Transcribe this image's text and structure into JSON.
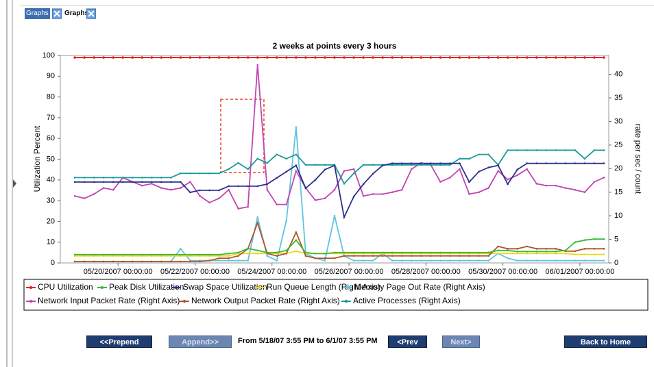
{
  "tabs": [
    "Graphs",
    "Graphs"
  ],
  "chart_data": {
    "type": "line",
    "title": "2 weeks at points every 3 hours",
    "ylabel": "Utilization Percent",
    "y2label": "rate per sec / count",
    "x": [
      "05/18/2007 21:00:00",
      "05/19/2007 03:00:00",
      "05/19/2007 09:00:00",
      "05/19/2007 15:00:00",
      "05/19/2007 21:00:00",
      "05/20/2007 03:00:00",
      "05/20/2007 09:00:00",
      "05/20/2007 15:00:00",
      "05/20/2007 21:00:00",
      "05/21/2007 03:00:00",
      "05/21/2007 09:00:00",
      "05/21/2007 15:00:00",
      "05/21/2007 21:00:00",
      "05/22/2007 03:00:00",
      "05/22/2007 09:00:00",
      "05/22/2007 15:00:00",
      "05/22/2007 21:00:00",
      "05/23/2007 03:00:00",
      "05/23/2007 09:00:00",
      "05/23/2007 15:00:00",
      "05/23/2007 21:00:00",
      "05/24/2007 03:00:00",
      "05/24/2007 09:00:00",
      "05/24/2007 15:00:00",
      "05/24/2007 21:00:00",
      "05/25/2007 03:00:00",
      "05/25/2007 09:00:00",
      "05/25/2007 15:00:00",
      "05/25/2007 21:00:00",
      "05/26/2007 03:00:00",
      "05/26/2007 09:00:00",
      "05/26/2007 15:00:00",
      "05/26/2007 21:00:00",
      "05/27/2007 03:00:00",
      "05/27/2007 09:00:00",
      "05/27/2007 15:00:00",
      "05/27/2007 21:00:00",
      "05/28/2007 03:00:00",
      "05/28/2007 09:00:00",
      "05/28/2007 15:00:00",
      "05/28/2007 21:00:00",
      "05/29/2007 03:00:00",
      "05/29/2007 09:00:00",
      "05/29/2007 15:00:00",
      "05/29/2007 21:00:00",
      "05/30/2007 03:00:00",
      "05/30/2007 09:00:00",
      "05/30/2007 15:00:00",
      "05/30/2007 21:00:00",
      "05/31/2007 03:00:00",
      "05/31/2007 09:00:00",
      "05/31/2007 15:00:00",
      "05/31/2007 21:00:00",
      "06/01/2007 03:00:00",
      "06/01/2007 09:00:00",
      "06/01/2007 15:00:00"
    ],
    "xlim": [
      "05/18/2007 12:00:00",
      "06/01/2007 18:00:00"
    ],
    "xticks": [
      "05/20/2007 00:00:00",
      "05/22/2007 00:00:00",
      "05/24/2007 00:00:00",
      "05/26/2007 00:00:00",
      "05/28/2007 00:00:00",
      "05/30/2007 00:00:00",
      "06/01/2007 00:00:00"
    ],
    "ylim": [
      0,
      100
    ],
    "yticks": [
      0,
      10,
      20,
      30,
      40,
      50,
      60,
      70,
      80,
      90,
      100
    ],
    "y2lim": [
      0,
      44
    ],
    "y2ticks": [
      0,
      5,
      10,
      15,
      20,
      25,
      30,
      35,
      40
    ],
    "grid": false,
    "legend": "bottom",
    "series": [
      {
        "name": "CPU Utilization",
        "color": "#e8202a",
        "values": [
          99,
          99,
          99,
          99,
          99,
          99,
          99,
          99,
          99,
          99,
          99,
          99,
          99,
          99,
          99,
          99,
          99,
          99,
          99,
          99,
          99,
          99,
          99,
          99,
          99,
          99,
          99,
          99,
          99,
          99,
          99,
          99,
          99,
          99,
          99,
          99,
          99,
          99,
          99,
          99,
          99,
          99,
          99,
          99,
          99,
          99,
          99,
          99,
          99,
          99,
          99,
          99,
          99,
          99,
          99,
          99
        ]
      },
      {
        "name": "Peak Disk Utilization",
        "color": "#3db83a",
        "values": [
          4,
          4,
          4,
          4,
          4,
          4,
          4,
          4,
          4,
          4,
          4,
          4,
          4,
          4,
          4,
          4,
          4.5,
          5,
          7,
          6,
          5,
          5,
          6,
          11,
          5,
          4.5,
          4.5,
          5,
          5,
          5,
          5,
          5,
          5,
          5,
          5,
          5,
          5,
          5,
          5,
          5,
          5,
          5,
          5,
          5,
          6,
          6,
          5.5,
          5.5,
          5.5,
          5.5,
          5.5,
          6,
          10,
          11,
          11.5,
          11.5
        ]
      },
      {
        "name": "Swap Space Utilization",
        "color": "#2b2f8f",
        "values": [
          39,
          39,
          39,
          39,
          39,
          39,
          39,
          39,
          39,
          39,
          39,
          39,
          34,
          35,
          35,
          35,
          37,
          37,
          37,
          37,
          38,
          41,
          44,
          47,
          36,
          40,
          45,
          47,
          22,
          32,
          38,
          43,
          47,
          48,
          48,
          48,
          48,
          48,
          48,
          48,
          48,
          39,
          44,
          46,
          47,
          38,
          45,
          48,
          48,
          48,
          48,
          48,
          48,
          48,
          48,
          48
        ]
      },
      {
        "name": "Run Queue Length (Right Axis)",
        "color": "#e8d820",
        "axis": "y2",
        "values": [
          1.5,
          1.5,
          1.5,
          1.5,
          1.5,
          1.5,
          1.5,
          1.5,
          1.5,
          1.5,
          1.5,
          1.5,
          1.5,
          1.5,
          1.5,
          1.5,
          1.5,
          2,
          2,
          2,
          2,
          2,
          2,
          2.5,
          2,
          2,
          2,
          2,
          2,
          2,
          2,
          2,
          2,
          2,
          2,
          2,
          2,
          2,
          2,
          2,
          2,
          2,
          2,
          2,
          2,
          2,
          2,
          2,
          2,
          2,
          2,
          2,
          1.8,
          1.8,
          1.8,
          1.8
        ]
      },
      {
        "name": "Memory Page Out Rate (Right Axis)",
        "color": "#5ec4e0",
        "axis": "y2",
        "values": [
          0.3,
          0.3,
          0.3,
          0.3,
          0.3,
          0.3,
          0.3,
          0.3,
          0.3,
          0.3,
          0.3,
          3,
          0.5,
          0.5,
          0.5,
          0.5,
          0.5,
          0.5,
          0.5,
          9.7,
          1.5,
          0.5,
          9,
          28.8,
          2,
          1,
          0.5,
          10,
          1.5,
          0.5,
          0.5,
          0.5,
          2,
          0.5,
          0.5,
          0.5,
          0.5,
          0.5,
          0.5,
          0.5,
          0.5,
          0.5,
          0.5,
          0.5,
          2,
          1,
          0.5,
          0.5,
          0.5,
          0.5,
          0.5,
          0.5,
          0.5,
          0.5,
          0.5,
          0.5
        ]
      },
      {
        "name": "Network Input Packet Rate (Right Axis)",
        "color": "#c045b0",
        "axis": "y2",
        "values": [
          14.2,
          13.7,
          14.6,
          15.9,
          15.5,
          18.1,
          17.2,
          16.4,
          16.8,
          15.9,
          15.5,
          15.9,
          17.2,
          14.2,
          12.8,
          13.7,
          15.5,
          11.5,
          11.9,
          42,
          15.5,
          12.4,
          12.4,
          19.5,
          15.9,
          13.3,
          13.7,
          15.5,
          19.5,
          19.9,
          14.2,
          14.6,
          14.6,
          15,
          15.5,
          19.9,
          21.2,
          20.8,
          17.2,
          18.1,
          19.9,
          14.6,
          15,
          15.9,
          19.5,
          17.7,
          18.6,
          19.9,
          16.8,
          16.4,
          16.4,
          15.9,
          15.5,
          15,
          17.2,
          18.1
        ]
      },
      {
        "name": "Network Output Packet Rate (Right Axis)",
        "color": "#b0552a",
        "axis": "y2",
        "values": [
          0.3,
          0.3,
          0.3,
          0.3,
          0.3,
          0.3,
          0.3,
          0.3,
          0.3,
          0.3,
          0.3,
          0.3,
          0.3,
          0.3,
          0.5,
          1,
          1,
          1.5,
          3,
          8.5,
          2,
          1.5,
          2,
          6.5,
          1.5,
          1,
          1,
          1,
          1.5,
          1.5,
          1.5,
          1.5,
          1.5,
          1.5,
          1.5,
          1.5,
          1.5,
          1.5,
          1.5,
          1.5,
          1.5,
          1.5,
          1.5,
          1.5,
          3.5,
          3,
          3,
          3.5,
          3,
          3,
          3,
          2.5,
          2.5,
          3,
          3,
          3
        ]
      },
      {
        "name": "Active Processes (Right Axis)",
        "color": "#1a9a9a",
        "axis": "y2",
        "values": [
          18.1,
          18.1,
          18.1,
          18.1,
          18.1,
          18.1,
          18.1,
          18.1,
          18.1,
          18.1,
          18.1,
          19,
          19,
          19,
          19,
          19,
          19.9,
          21.2,
          19.9,
          22.1,
          21.2,
          23,
          22.1,
          23,
          20.8,
          20.8,
          20.8,
          20.8,
          16.8,
          19,
          20.8,
          20.8,
          20.8,
          20.8,
          20.8,
          20.8,
          20.8,
          20.8,
          20.8,
          20.8,
          22.1,
          22.1,
          23,
          23,
          20.8,
          23.9,
          23.9,
          23.9,
          23.9,
          23.9,
          23.9,
          23.9,
          23.9,
          22.1,
          23.9,
          23.9
        ]
      }
    ]
  },
  "controls": {
    "prepend": "<<Prepend",
    "append": "Append>>",
    "range": "From 5/18/07 3:55 PM to 6/1/07 3:55 PM",
    "prev": "<Prev",
    "next": "Next>",
    "home": "Back to Home"
  }
}
